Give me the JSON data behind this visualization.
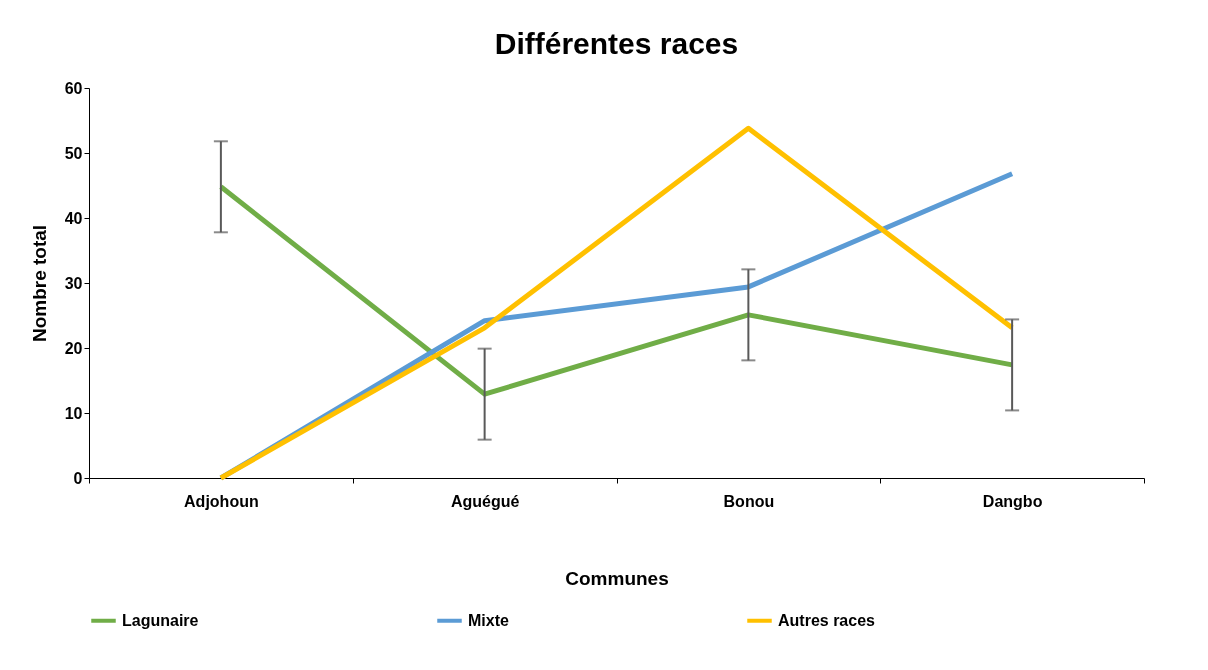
{
  "chart_data": {
    "type": "line",
    "title": "Différentes races",
    "xlabel": "Communes",
    "ylabel": "Nombre total",
    "categories": [
      "Adjohoun",
      "Aguégué",
      "Bonou",
      "Dangbo"
    ],
    "series": [
      {
        "name": "Lagunaire",
        "color": "#70ad47",
        "values": [
          44.8,
          12.9,
          25.1,
          17.4
        ],
        "errors": [
          7,
          7,
          7,
          7
        ]
      },
      {
        "name": "Mixte",
        "color": "#5b9bd5",
        "values": [
          0,
          24.2,
          29.4,
          46.8
        ]
      },
      {
        "name": "Autres races",
        "color": "#ffc000",
        "values": [
          0,
          23.1,
          53.8,
          23.1
        ]
      }
    ],
    "ylim": [
      0,
      60
    ],
    "yticks": [
      0,
      10,
      20,
      30,
      40,
      50,
      60
    ],
    "grid": false,
    "legend": "bottom",
    "marker": "none",
    "line_style": "solid"
  }
}
